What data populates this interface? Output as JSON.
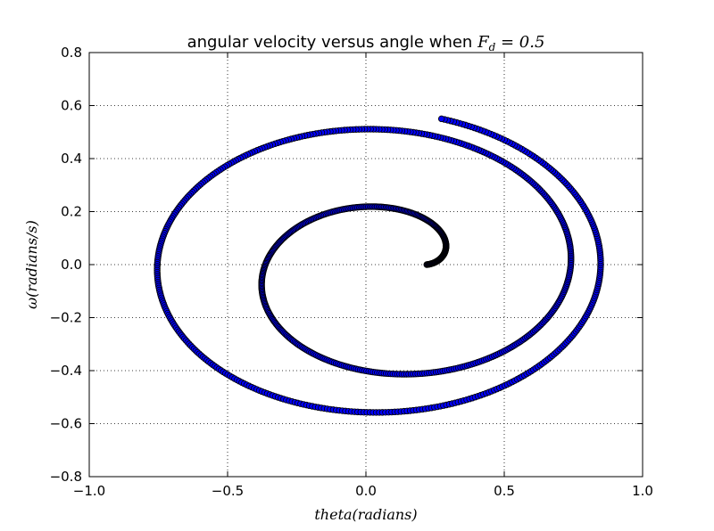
{
  "chart_data": {
    "type": "scatter",
    "title": {
      "text": "angular velocity versus angle when ",
      "math_symbol": "F",
      "math_subscript": "d",
      "math_value": " = 0.5"
    },
    "xlabel": "theta(radians)",
    "ylabel": "ω(radians/s)",
    "xlim": [
      -1.0,
      1.0
    ],
    "ylim": [
      -0.8,
      0.8
    ],
    "xticks": [
      -1.0,
      -0.5,
      0.0,
      0.5,
      1.0
    ],
    "xtick_labels": [
      "−1.0",
      "−0.5",
      "0.0",
      "0.5",
      "1.0"
    ],
    "yticks": [
      -0.8,
      -0.6,
      -0.4,
      -0.2,
      0.0,
      0.2,
      0.4,
      0.6,
      0.8
    ],
    "ytick_labels": [
      "−0.8",
      "−0.6",
      "−0.4",
      "−0.2",
      "0.0",
      "0.2",
      "0.4",
      "0.6",
      "0.8"
    ],
    "grid": true,
    "marker_color": "#0000ff",
    "marker_edge_color": "#000000",
    "series": [
      {
        "theta0": 0.2,
        "omega0": 0.0,
        "end_turns": 2.2,
        "x_amplitude": 0.875,
        "y_amplitude": 0.6,
        "y_peak_initial": 0.23,
        "n_points": 1000
      }
    ]
  }
}
